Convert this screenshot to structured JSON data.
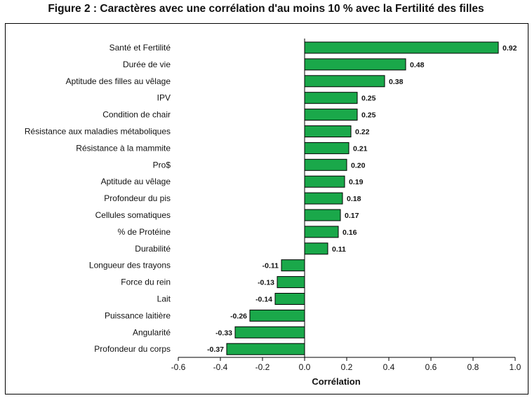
{
  "title": "Figure 2 : Caractères avec une corrélation d'au moins 10 % avec la Fertilité des filles",
  "chart_data": {
    "type": "bar",
    "orientation": "horizontal",
    "categories": [
      "Santé et Fertilité",
      "Durée de vie",
      "Aptitude des filles au vêlage",
      "IPV",
      "Condition de chair",
      "Résistance aux maladies métaboliques",
      "Résistance à la mammite",
      "Pro$",
      "Aptitude au vêlage",
      "Profondeur du pis",
      "Cellules somatiques",
      "% de Protéine",
      "Durabilité",
      "Longueur des trayons",
      "Force du rein",
      "Lait",
      "Puissance laitière",
      "Angularité",
      "Profondeur du corps"
    ],
    "values": [
      0.92,
      0.48,
      0.38,
      0.25,
      0.25,
      0.22,
      0.21,
      0.2,
      0.19,
      0.18,
      0.17,
      0.16,
      0.11,
      -0.11,
      -0.13,
      -0.14,
      -0.26,
      -0.33,
      -0.37
    ],
    "value_labels": [
      "0.92",
      "0.48",
      "0.38",
      "0.25",
      "0.25",
      "0.22",
      "0.21",
      "0.20",
      "0.19",
      "0.18",
      "0.17",
      "0.16",
      "0.11",
      "-0.11",
      "-0.13",
      "-0.14",
      "-0.26",
      "-0.33",
      "-0.37"
    ],
    "xlabel": "Corrélation",
    "xlim": [
      -0.6,
      1.0
    ],
    "xticks": [
      "-0.6",
      "-0.4",
      "-0.2",
      "0.0",
      "0.2",
      "0.4",
      "0.6",
      "0.8",
      "1.0"
    ],
    "bar_color": "#1aa84a",
    "bar_edge_color": "#000000",
    "grid": false,
    "legend": "none"
  }
}
